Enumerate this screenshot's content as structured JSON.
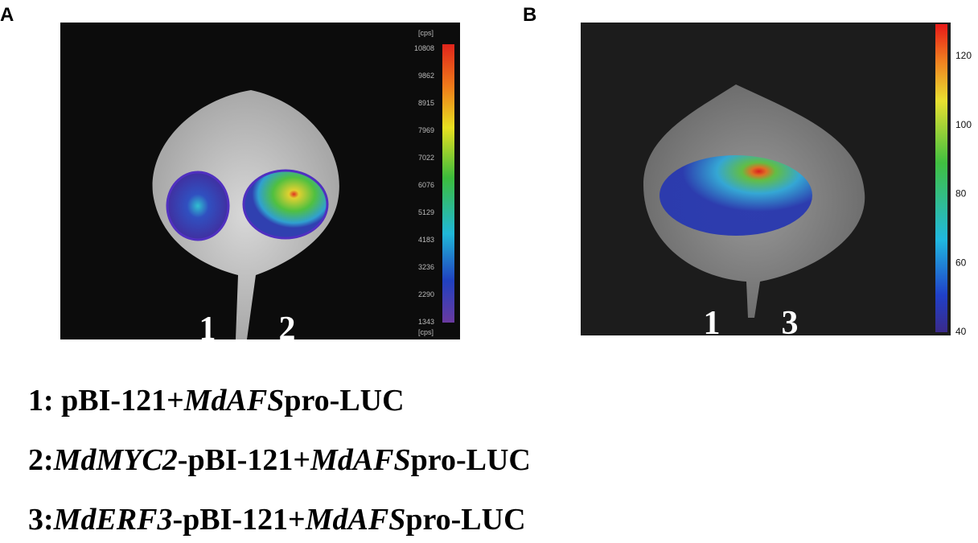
{
  "panels": [
    {
      "label": "A",
      "colorbar": {
        "unit_top": "[cps]",
        "unit_bottom": "[cps]",
        "ticks": [
          "10808",
          "9862",
          "8915",
          "7969",
          "7022",
          "6076",
          "5129",
          "4183",
          "3236",
          "2290",
          "1343"
        ]
      },
      "leaf_labels": [
        "1",
        "2"
      ]
    },
    {
      "label": "B",
      "colorbar": {
        "ticks": [
          "120",
          "100",
          "80",
          "60",
          "40"
        ]
      },
      "leaf_labels": [
        "1",
        "3"
      ]
    }
  ],
  "legend": [
    [
      {
        "text": "1: pBI-121+"
      },
      {
        "text": "MdAFS",
        "italic": true
      },
      {
        "text": "pro-LUC"
      }
    ],
    [
      {
        "text": "2:"
      },
      {
        "text": "MdMYC2",
        "italic": true
      },
      {
        "text": "-pBI-121+"
      },
      {
        "text": "MdAFS",
        "italic": true
      },
      {
        "text": "pro-LUC"
      }
    ],
    [
      {
        "text": "3:"
      },
      {
        "text": "MdERF3",
        "italic": true
      },
      {
        "text": "-pBI-121+"
      },
      {
        "text": "MdAFS",
        "italic": true
      },
      {
        "text": "pro-LUC"
      }
    ]
  ]
}
